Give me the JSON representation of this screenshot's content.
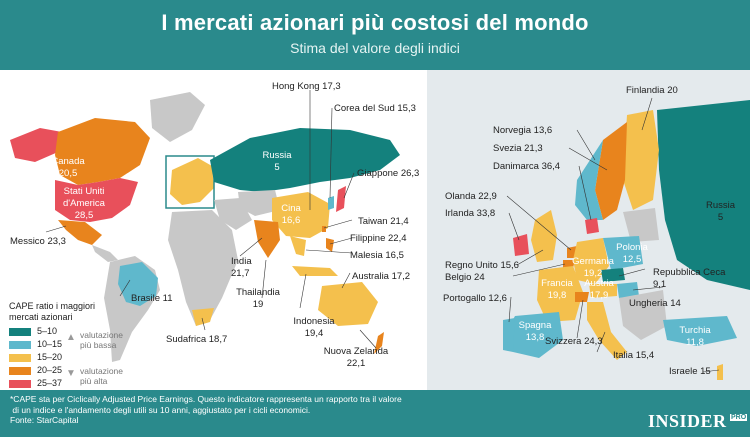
{
  "header": {
    "title": "I mercati azionari più costosi del mondo",
    "subtitle": "Stima del valore degli indici"
  },
  "colors": {
    "header_bg": "#2a8a8c",
    "cat_5_10": "#14817d",
    "cat_10_15": "#5fb8cc",
    "cat_15_20": "#f4c04d",
    "cat_20_25": "#e8841d",
    "cat_25_37": "#e8505b",
    "no_data": "#c8c8c8"
  },
  "legend": {
    "title": "CAPE ratio i maggiori\nmercati azionari",
    "items": [
      {
        "range": "5–10",
        "color": "#14817d"
      },
      {
        "range": "10–15",
        "color": "#5fb8cc"
      },
      {
        "range": "15–20",
        "color": "#f4c04d"
      },
      {
        "range": "20–25",
        "color": "#e8841d"
      },
      {
        "range": "25–37",
        "color": "#e8505b"
      }
    ],
    "low_note": "valutazione\npiù bassa",
    "high_note": "valutazione\npiù alta"
  },
  "world_labels": {
    "hongkong": "Hong Kong 17,3",
    "corea": "Corea del Sud 15,3",
    "russia": "Russia\n5",
    "giappone": "Giappone 26,3",
    "canada": "Canada\n20,5",
    "usa": "Stati Uniti\nd'America\n28,5",
    "cina": "Cina\n16,6",
    "taiwan": "Taiwan 21,4",
    "filippine": "Filippine 22,4",
    "messico": "Messico 23,3",
    "india": "India\n21,7",
    "malesia": "Malesia 16,5",
    "australia": "Australia 17,2",
    "brasile": "Brasile 11",
    "thailandia": "Thailandia\n19",
    "indonesia": "Indonesia\n19,4",
    "sudafrica": "Sudafrica 18,7",
    "nuovazelanda": "Nuova Zelanda\n22,1"
  },
  "europe_labels": {
    "finlandia": "Finlandia 20",
    "norvegia": "Norvegia 13,6",
    "svezia": "Svezia 21,3",
    "danimarca": "Danimarca 36,4",
    "russia": "Russia\n5",
    "olanda": "Olanda 22,9",
    "irlanda": "Irlanda 33,8",
    "polonia": "Polonia\n12,5",
    "germania": "Germania\n19,2",
    "regnounito": "Regno Unito 15,6",
    "belgio": "Belgio 24",
    "repceca": "Repubblica Ceca\n9,1",
    "francia": "Francia\n19,8",
    "austria": "Austria\n17,9",
    "ungheria": "Ungheria 14",
    "portogallo": "Portogallo 12,6",
    "spagna": "Spagna\n13,8",
    "svizzera": "Svizzera 24,3",
    "turchia": "Turchia\n11,8",
    "italia": "Italia 15,4",
    "israele": "Israele 15"
  },
  "footer": {
    "note": "*CAPE sta per Ciclically Adjusted Price Earnings. Questo indicatore rappresenta un rapporto tra il valore\n di un indice e l'andamento degli utili su 10 anni, aggiustato per i cicli economici.",
    "source": "Fonte: StarCapital",
    "brand": "INSIDER",
    "brand_pro": "PRO"
  }
}
